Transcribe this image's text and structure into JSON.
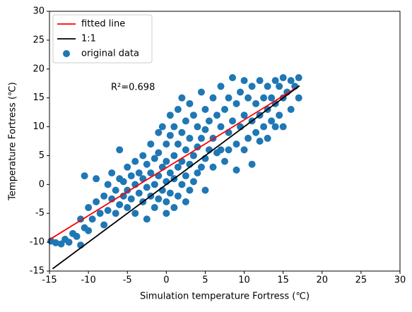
{
  "chart_data": {
    "type": "scatter",
    "xlabel": "Simulation temperature Fortress (℃)",
    "ylabel": "Temperature Fortress (℃)",
    "annotation": "R²=0.698",
    "xlim": [
      -15,
      30
    ],
    "ylim": [
      -15,
      30
    ],
    "xticks": [
      -15,
      -10,
      -5,
      0,
      5,
      10,
      15,
      20,
      25,
      30
    ],
    "yticks": [
      -15,
      -10,
      -5,
      0,
      5,
      10,
      15,
      20,
      25,
      30
    ],
    "legend": "upper left",
    "series": [
      {
        "name": "fitted line",
        "kind": "line",
        "color": "#ff0000",
        "x": [
          -15,
          17
        ],
        "values": [
          -9.55,
          17.0
        ]
      },
      {
        "name": "1:1",
        "kind": "line",
        "color": "#000000",
        "x": [
          -14.6,
          17.1
        ],
        "values": [
          -14.6,
          17.1
        ]
      },
      {
        "name": "original data",
        "kind": "scatter",
        "color": "#1f77b4",
        "x": [
          -14.8,
          -14.2,
          -13.5,
          -13,
          -12.5,
          -12,
          -11.5,
          -11,
          -11,
          -10.5,
          -10,
          -10,
          -10.5,
          -9.5,
          -9,
          -9,
          -8.5,
          -8,
          -8,
          -7.5,
          -7.5,
          -7,
          -7,
          -6.5,
          -6.5,
          -6,
          -6,
          -6,
          -5.5,
          -5.5,
          -5,
          -5,
          -5,
          -4.5,
          -4.5,
          -4,
          -4,
          -4,
          -3.5,
          -3.5,
          -3,
          -3,
          -3,
          -2.5,
          -2.5,
          -2.5,
          -2,
          -2,
          -2,
          -1.5,
          -1.5,
          -1.5,
          -1,
          -1,
          -1,
          -1,
          -0.5,
          -0.5,
          -0.5,
          0,
          0,
          0,
          0,
          0,
          0.5,
          0.5,
          0.5,
          0.5,
          1,
          1,
          1,
          1,
          1.5,
          1.5,
          1.5,
          1.5,
          2,
          2,
          2,
          2,
          2.5,
          2.5,
          2.5,
          2.5,
          3,
          3,
          3,
          3,
          3.5,
          3.5,
          3.5,
          4,
          4,
          4,
          4.5,
          4.5,
          4.5,
          5,
          5,
          5,
          5,
          5.5,
          5.5,
          6,
          6,
          6,
          6.5,
          6.5,
          7,
          7,
          7,
          7.5,
          7.5,
          8,
          8,
          8,
          8.5,
          8.5,
          9,
          9,
          9,
          9.5,
          9.5,
          10,
          10,
          10,
          10.5,
          10.5,
          11,
          11,
          11,
          11.5,
          11.5,
          12,
          12,
          12,
          12.5,
          12.5,
          13,
          13,
          13,
          13.5,
          13.5,
          14,
          14,
          14,
          14.5,
          14.5,
          15,
          15,
          15,
          15.5,
          16,
          16,
          16.5,
          17,
          17
        ],
        "values": [
          -9.8,
          -10.1,
          -10.3,
          -9.5,
          -10,
          -8.5,
          -9,
          -10.5,
          -6,
          -7.5,
          -8,
          -4,
          1.5,
          -6,
          -3,
          1,
          -5,
          -2,
          -7,
          0,
          -4.5,
          -2.5,
          2,
          -1,
          -5,
          6,
          1,
          -3.5,
          0.5,
          -2,
          3,
          -1,
          -4,
          1.5,
          -2.5,
          4,
          0,
          -5,
          2,
          -1.5,
          5,
          1,
          -3,
          3.5,
          -0.5,
          -6,
          7,
          2,
          -2,
          4.5,
          0,
          -4,
          9,
          5.5,
          1.5,
          -2.5,
          10,
          3,
          -1,
          7,
          4,
          0.5,
          -3,
          -5,
          12,
          8.5,
          2,
          -1.5,
          10,
          5,
          1,
          -4,
          13,
          7,
          3,
          -2,
          15,
          9,
          4,
          0,
          11,
          6,
          1.5,
          -3,
          14,
          8,
          3.5,
          -1,
          12,
          5,
          0.5,
          10,
          6.5,
          2,
          16,
          8,
          3,
          13,
          9.5,
          4.5,
          -1,
          11,
          6,
          15,
          8,
          3,
          12,
          5.5,
          17,
          10,
          6,
          13,
          4,
          15,
          9,
          6,
          18.5,
          11,
          14,
          7,
          2.5,
          16,
          10,
          18,
          12,
          6,
          15,
          8,
          17,
          11,
          3.5,
          14,
          9,
          18,
          12,
          7.5,
          15,
          10,
          17,
          13,
          8,
          15,
          11,
          18,
          14,
          10,
          17,
          12,
          18.5,
          15,
          10,
          16,
          18,
          13,
          17,
          18.5,
          15
        ]
      }
    ]
  }
}
